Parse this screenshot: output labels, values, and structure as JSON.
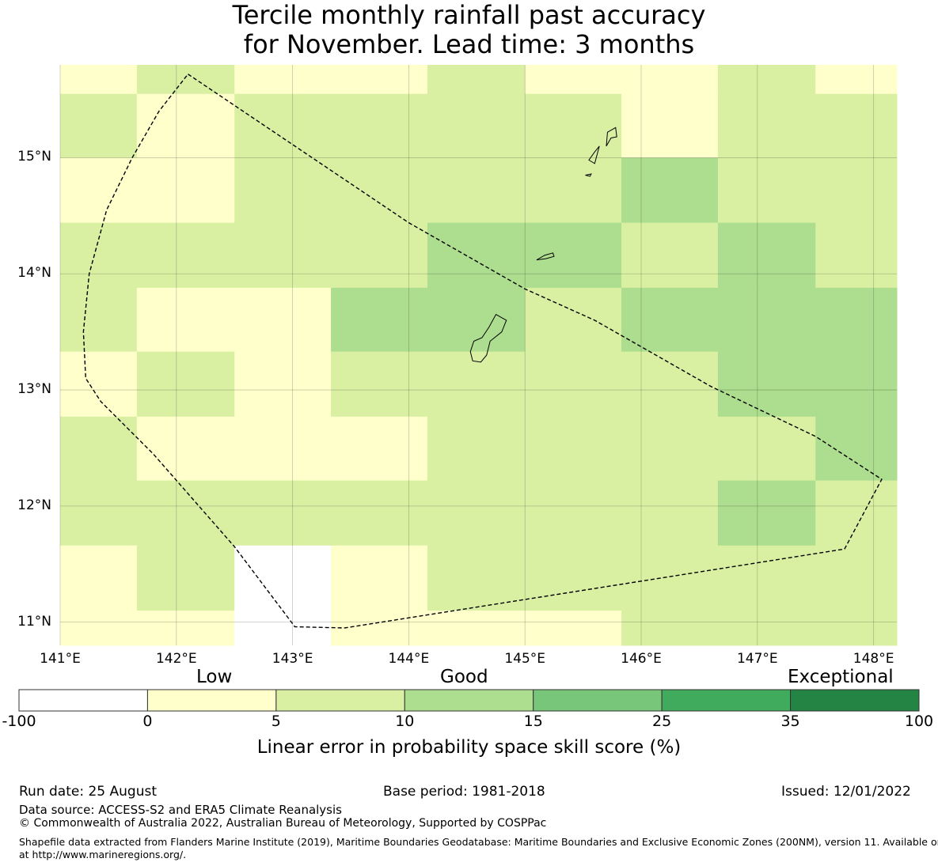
{
  "title_line1": "Tercile monthly rainfall past accuracy",
  "title_line2": "for November. Lead time: 3 months",
  "map": {
    "lon_ticks": [
      "141°E",
      "142°E",
      "143°E",
      "144°E",
      "145°E",
      "146°E",
      "147°E",
      "148°E"
    ],
    "lat_ticks": [
      "15°N",
      "14°N",
      "13°N",
      "12°N",
      "11°N"
    ],
    "lon_values": [
      141,
      142,
      143,
      144,
      145,
      146,
      147,
      148
    ],
    "lat_values": [
      15,
      14,
      13,
      12,
      11
    ],
    "extent": {
      "lon_min": 141.0,
      "lon_max": 148.2,
      "lat_min": 10.8,
      "lat_max": 15.8
    },
    "grid_lon_edges": [
      141.0,
      141.66,
      142.5,
      143.33,
      144.16,
      145.0,
      145.83,
      146.66,
      147.5,
      148.2
    ],
    "grid_lat_edges": [
      15.8,
      15.55,
      15.0,
      14.44,
      13.88,
      13.33,
      12.77,
      12.22,
      11.66,
      11.1,
      10.8
    ],
    "cell_categories": [
      [
        1,
        2,
        1,
        1,
        2,
        1,
        1,
        2,
        1
      ],
      [
        2,
        1,
        2,
        2,
        2,
        2,
        1,
        2,
        2
      ],
      [
        1,
        1,
        2,
        2,
        2,
        2,
        3,
        2,
        2
      ],
      [
        2,
        2,
        2,
        2,
        3,
        3,
        2,
        3,
        2
      ],
      [
        2,
        1,
        1,
        3,
        3,
        2,
        3,
        3,
        3
      ],
      [
        1,
        2,
        1,
        2,
        2,
        2,
        2,
        3,
        3
      ],
      [
        2,
        1,
        1,
        1,
        2,
        2,
        2,
        2,
        3
      ],
      [
        2,
        2,
        2,
        2,
        2,
        2,
        2,
        3,
        2
      ],
      [
        1,
        2,
        0,
        1,
        2,
        2,
        2,
        2,
        2
      ],
      [
        1,
        1,
        0,
        1,
        1,
        1,
        2,
        2,
        2
      ]
    ],
    "eez_boundary": [
      [
        142.1,
        15.72
      ],
      [
        144.0,
        14.44
      ],
      [
        145.0,
        13.87
      ],
      [
        145.6,
        13.6
      ],
      [
        146.6,
        13.03
      ],
      [
        147.5,
        12.6
      ],
      [
        148.07,
        12.23
      ],
      [
        147.75,
        11.63
      ],
      [
        143.45,
        10.95
      ],
      [
        143.02,
        10.96
      ],
      [
        142.5,
        11.65
      ],
      [
        141.8,
        12.45
      ],
      [
        141.35,
        12.9
      ],
      [
        141.22,
        13.1
      ],
      [
        141.2,
        13.5
      ],
      [
        141.25,
        14.0
      ],
      [
        141.4,
        14.55
      ],
      [
        141.62,
        15.0
      ],
      [
        141.85,
        15.4
      ]
    ],
    "islands": [
      [
        [
          144.75,
          13.65
        ],
        [
          144.84,
          13.6
        ],
        [
          144.8,
          13.5
        ],
        [
          144.7,
          13.42
        ],
        [
          144.67,
          13.3
        ],
        [
          144.62,
          13.24
        ],
        [
          144.55,
          13.25
        ],
        [
          144.53,
          13.33
        ],
        [
          144.56,
          13.42
        ],
        [
          144.63,
          13.45
        ],
        [
          144.69,
          13.54
        ]
      ],
      [
        [
          145.1,
          14.12
        ],
        [
          145.17,
          14.16
        ],
        [
          145.24,
          14.18
        ],
        [
          145.25,
          14.15
        ],
        [
          145.18,
          14.13
        ]
      ],
      [
        [
          145.71,
          15.22
        ],
        [
          145.78,
          15.26
        ],
        [
          145.79,
          15.18
        ],
        [
          145.74,
          15.17
        ],
        [
          145.7,
          15.1
        ]
      ],
      [
        [
          145.6,
          15.05
        ],
        [
          145.64,
          15.1
        ],
        [
          145.6,
          14.95
        ],
        [
          145.55,
          14.98
        ]
      ],
      [
        [
          145.52,
          14.85
        ],
        [
          145.57,
          14.86
        ],
        [
          145.56,
          14.84
        ]
      ]
    ]
  },
  "colorbar": {
    "categories": [
      "Low",
      "Good",
      "Exceptional"
    ],
    "ticks": [
      "-100",
      "0",
      "5",
      "10",
      "15",
      "25",
      "35",
      "100"
    ],
    "colors": [
      "#ffffff",
      "#ffffcc",
      "#d9f0a3",
      "#addd8e",
      "#78c679",
      "#41ab5d",
      "#238443"
    ],
    "label": "Linear error in probability space skill score (%)"
  },
  "footer": {
    "run_date": "Run date: 25 August",
    "base_period": "Base period: 1981-2018",
    "issued": "Issued: 12/01/2022",
    "data_source": "Data source: ACCESS-S2 and ERA5 Climate Reanalysis",
    "copyright": "© Commonwealth of Australia 2022, Australian Bureau of Meteorology, Supported by COSPPac",
    "shapefile_line1": "Shapefile data extracted from Flanders Marine Institute (2019), Maritime Boundaries Geodatabase: Maritime Boundaries and Exclusive Economic Zones (200NM), version 11. Available online",
    "shapefile_line2": "at http://www.marineregions.org/."
  }
}
